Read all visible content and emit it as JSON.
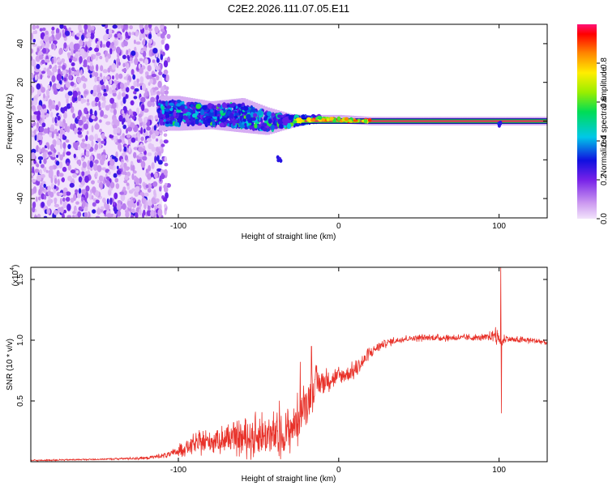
{
  "title": "C2E2.2026.111.07.05.E11",
  "colors": {
    "signal": "#e8322a",
    "frame": "#000000",
    "background": "#ffffff"
  },
  "chart_data": [
    {
      "type": "heatmap",
      "name": "spectrogram",
      "xlabel": "Height of straight line (km)",
      "ylabel": "Frequency (Hz)",
      "xlim": [
        -192,
        130
      ],
      "ylim": [
        -50,
        50
      ],
      "xticks": [
        -100,
        0,
        100
      ],
      "xtick_labels": [
        "-100",
        "0",
        "100"
      ],
      "yticks": [
        -40,
        -20,
        0,
        20,
        40
      ],
      "ytick_labels": [
        "-40",
        "-20",
        "0",
        "20",
        "40"
      ],
      "noise_region_x": [
        -192,
        -110
      ],
      "structured_band": [
        {
          "x": -110,
          "center": 4,
          "halfwidth": 5
        },
        {
          "x": -100,
          "center": 4,
          "halfwidth": 5
        },
        {
          "x": -80,
          "center": 3,
          "halfwidth": 4
        },
        {
          "x": -60,
          "center": 3,
          "halfwidth": 5
        },
        {
          "x": -45,
          "center": 0,
          "halfwidth": 4
        },
        {
          "x": -30,
          "center": 0,
          "halfwidth": 2
        },
        {
          "x": -15,
          "center": 1,
          "halfwidth": 1
        },
        {
          "x": 0,
          "center": 1,
          "halfwidth": 1
        },
        {
          "x": 20,
          "center": 0,
          "halfwidth": 0.6
        },
        {
          "x": 130,
          "center": 0,
          "halfwidth": 0.6
        }
      ],
      "artifacts": [
        {
          "x": -37,
          "y": -20
        },
        {
          "x": 100,
          "y": -2
        }
      ],
      "colorbar": {
        "label": "Normalized spectral amplitude",
        "range": [
          0,
          1
        ],
        "ticks": [
          0.0,
          0.2,
          0.4,
          0.6,
          0.8
        ],
        "tick_labels": [
          "0.0",
          "0.2",
          "0.4",
          "0.6",
          "0.8"
        ],
        "stops": [
          {
            "v": 0.0,
            "color": "#f2e4fb"
          },
          {
            "v": 0.08,
            "color": "#cc99f0"
          },
          {
            "v": 0.2,
            "color": "#7722e8"
          },
          {
            "v": 0.3,
            "color": "#1010e0"
          },
          {
            "v": 0.42,
            "color": "#00c8e8"
          },
          {
            "v": 0.55,
            "color": "#00dd55"
          },
          {
            "v": 0.65,
            "color": "#99ee00"
          },
          {
            "v": 0.75,
            "color": "#ffee00"
          },
          {
            "v": 0.85,
            "color": "#ff8800"
          },
          {
            "v": 0.95,
            "color": "#ff0000"
          },
          {
            "v": 1.0,
            "color": "#ff1177"
          }
        ]
      }
    },
    {
      "type": "line",
      "name": "snr",
      "xlabel": "Height of straight line (km)",
      "ylabel": "SNR (10 * v/v)",
      "scale_label": "(x10",
      "scale_exp": "4",
      "scale_suffix": ")",
      "xlim": [
        -192,
        130
      ],
      "ylim": [
        0,
        1.6
      ],
      "xticks": [
        -100,
        0,
        100
      ],
      "xtick_labels": [
        "-100",
        "0",
        "100"
      ],
      "yticks": [
        0.5,
        1.0,
        1.5
      ],
      "ytick_labels": [
        "0.5",
        "1.0",
        "1.5"
      ],
      "series": [
        {
          "name": "SNR",
          "x": [
            -192,
            -150,
            -120,
            -105,
            -95,
            -85,
            -75,
            -65,
            -55,
            -45,
            -35,
            -25,
            -20,
            -15,
            -10,
            -5,
            0,
            5,
            10,
            15,
            20,
            25,
            30,
            40,
            50,
            60,
            70,
            80,
            90,
            95,
            98,
            100,
            102,
            104,
            106,
            110,
            120,
            130
          ],
          "y": [
            0.01,
            0.02,
            0.03,
            0.06,
            0.12,
            0.16,
            0.18,
            0.19,
            0.2,
            0.22,
            0.2,
            0.35,
            0.5,
            0.62,
            0.66,
            0.68,
            0.7,
            0.72,
            0.75,
            0.82,
            0.9,
            0.95,
            0.98,
            1.01,
            1.02,
            1.02,
            1.02,
            1.02,
            1.02,
            1.03,
            1.06,
            1.0,
            0.98,
            1.02,
            1.01,
            1.0,
            1.0,
            0.98
          ],
          "noise_amplitude": [
            0.005,
            0.005,
            0.01,
            0.02,
            0.05,
            0.07,
            0.08,
            0.09,
            0.12,
            0.15,
            0.12,
            0.15,
            0.12,
            0.12,
            0.08,
            0.06,
            0.06,
            0.06,
            0.05,
            0.05,
            0.04,
            0.03,
            0.025,
            0.02,
            0.02,
            0.02,
            0.02,
            0.02,
            0.02,
            0.03,
            0.06,
            0.03,
            0.03,
            0.03,
            0.02,
            0.02,
            0.02,
            0.02
          ],
          "spikes": [
            {
              "x": -37,
              "y": 0.5
            },
            {
              "x": -24,
              "y": 0.82
            },
            {
              "x": -17,
              "y": 0.95
            },
            {
              "x": 101,
              "y": 1.6
            },
            {
              "x": 101.5,
              "y": 0.4
            }
          ]
        }
      ]
    }
  ]
}
